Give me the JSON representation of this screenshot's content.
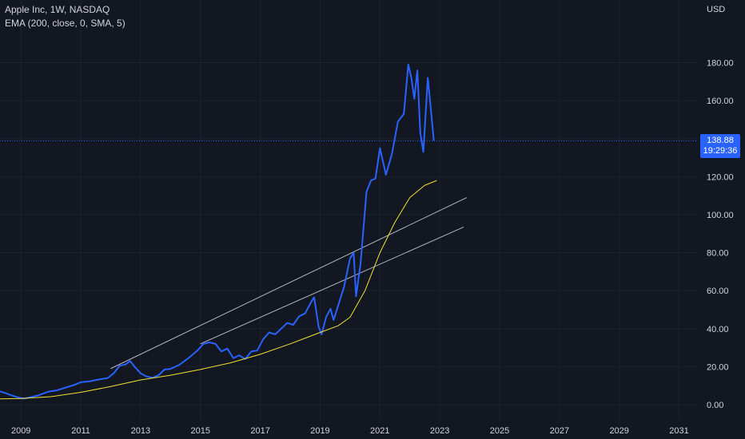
{
  "header": {
    "symbol_line": "Apple Inc, 1W, NASDAQ",
    "indicator_line": "EMA (200, close, 0, SMA, 5)"
  },
  "price_scale": {
    "currency": "USD",
    "last_price": "138.88",
    "countdown": "19:29:36"
  },
  "colors": {
    "background": "#131722",
    "grid": "#1e222d",
    "price_line": "#2962ff",
    "ema_line": "#f0e130",
    "trend_lines": "#b2b5be",
    "badge": "#2962ff"
  },
  "chart_data": {
    "type": "line",
    "title": "Apple Inc, 1W, NASDAQ",
    "xlim": [
      2008.3,
      2031.6
    ],
    "ylim": [
      -8,
      213
    ],
    "x_ticks": [
      2009,
      2011,
      2013,
      2015,
      2017,
      2019,
      2021,
      2023,
      2025,
      2027,
      2029,
      2031
    ],
    "x_tick_labels": [
      "2009",
      "2011",
      "2013",
      "2015",
      "2017",
      "2019",
      "2021",
      "2023",
      "2025",
      "2027",
      "2029",
      "2031"
    ],
    "y_ticks": [
      0,
      20,
      40,
      60,
      80,
      100,
      120,
      140,
      160,
      180
    ],
    "y_tick_labels": [
      "0.00",
      "20.00",
      "40.00",
      "60.00",
      "80.00",
      "100.00",
      "120.00",
      "140.00",
      "160.00",
      "180.00"
    ],
    "grid": true,
    "series": [
      {
        "name": "Apple Inc",
        "role": "price",
        "points": [
          [
            2008.3,
            7.0
          ],
          [
            2008.5,
            6.0
          ],
          [
            2008.7,
            4.8
          ],
          [
            2008.9,
            3.8
          ],
          [
            2009.1,
            3.2
          ],
          [
            2009.3,
            3.8
          ],
          [
            2009.6,
            5.0
          ],
          [
            2009.9,
            6.8
          ],
          [
            2010.2,
            7.5
          ],
          [
            2010.5,
            9.0
          ],
          [
            2010.8,
            10.5
          ],
          [
            2011.0,
            11.8
          ],
          [
            2011.3,
            12.3
          ],
          [
            2011.6,
            13.2
          ],
          [
            2011.9,
            14.0
          ],
          [
            2012.1,
            16.5
          ],
          [
            2012.3,
            20.5
          ],
          [
            2012.5,
            21.2
          ],
          [
            2012.65,
            23.0
          ],
          [
            2012.8,
            20.0
          ],
          [
            2013.0,
            16.5
          ],
          [
            2013.2,
            14.8
          ],
          [
            2013.4,
            14.2
          ],
          [
            2013.6,
            15.5
          ],
          [
            2013.8,
            18.5
          ],
          [
            2014.0,
            18.8
          ],
          [
            2014.3,
            21.0
          ],
          [
            2014.6,
            24.5
          ],
          [
            2014.9,
            28.5
          ],
          [
            2015.1,
            32.0
          ],
          [
            2015.3,
            32.8
          ],
          [
            2015.5,
            32.0
          ],
          [
            2015.7,
            28.0
          ],
          [
            2015.9,
            29.5
          ],
          [
            2016.1,
            24.5
          ],
          [
            2016.3,
            26.0
          ],
          [
            2016.5,
            24.0
          ],
          [
            2016.7,
            28.0
          ],
          [
            2016.9,
            28.5
          ],
          [
            2017.1,
            34.5
          ],
          [
            2017.3,
            38.0
          ],
          [
            2017.5,
            37.0
          ],
          [
            2017.7,
            40.0
          ],
          [
            2017.9,
            43.0
          ],
          [
            2018.1,
            42.0
          ],
          [
            2018.3,
            46.5
          ],
          [
            2018.5,
            48.0
          ],
          [
            2018.7,
            54.0
          ],
          [
            2018.8,
            56.5
          ],
          [
            2018.95,
            41.0
          ],
          [
            2019.05,
            37.0
          ],
          [
            2019.2,
            46.0
          ],
          [
            2019.35,
            50.5
          ],
          [
            2019.45,
            44.5
          ],
          [
            2019.6,
            52.0
          ],
          [
            2019.8,
            62.0
          ],
          [
            2020.0,
            77.0
          ],
          [
            2020.12,
            80.0
          ],
          [
            2020.2,
            57.0
          ],
          [
            2020.35,
            74.0
          ],
          [
            2020.55,
            112.0
          ],
          [
            2020.7,
            118.0
          ],
          [
            2020.85,
            119.0
          ],
          [
            2021.0,
            135.0
          ],
          [
            2021.2,
            121.0
          ],
          [
            2021.4,
            132.0
          ],
          [
            2021.6,
            149.0
          ],
          [
            2021.8,
            153.0
          ],
          [
            2021.95,
            179.0
          ],
          [
            2022.05,
            172.0
          ],
          [
            2022.15,
            161.0
          ],
          [
            2022.25,
            176.0
          ],
          [
            2022.35,
            143.0
          ],
          [
            2022.45,
            133.0
          ],
          [
            2022.6,
            172.0
          ],
          [
            2022.7,
            156.0
          ],
          [
            2022.8,
            138.88
          ]
        ]
      },
      {
        "name": "EMA (200, close, 0, SMA, 5)",
        "role": "ema",
        "points": [
          [
            2008.3,
            3.0
          ],
          [
            2009.0,
            3.2
          ],
          [
            2010.0,
            4.2
          ],
          [
            2011.0,
            6.5
          ],
          [
            2012.0,
            9.5
          ],
          [
            2013.0,
            13.0
          ],
          [
            2014.0,
            15.5
          ],
          [
            2015.0,
            18.5
          ],
          [
            2016.0,
            22.0
          ],
          [
            2017.0,
            26.5
          ],
          [
            2018.0,
            32.0
          ],
          [
            2019.0,
            38.0
          ],
          [
            2019.6,
            41.5
          ],
          [
            2020.0,
            46.0
          ],
          [
            2020.5,
            60.0
          ],
          [
            2021.0,
            80.0
          ],
          [
            2021.5,
            96.0
          ],
          [
            2022.0,
            109.0
          ],
          [
            2022.5,
            115.5
          ],
          [
            2022.9,
            118.0
          ]
        ]
      }
    ],
    "trend_lines": [
      {
        "points": [
          [
            2012.0,
            19.0
          ],
          [
            2023.9,
            109.0
          ]
        ]
      },
      {
        "points": [
          [
            2015.0,
            32.0
          ],
          [
            2023.8,
            93.5
          ]
        ]
      }
    ],
    "last_value": 138.88
  }
}
